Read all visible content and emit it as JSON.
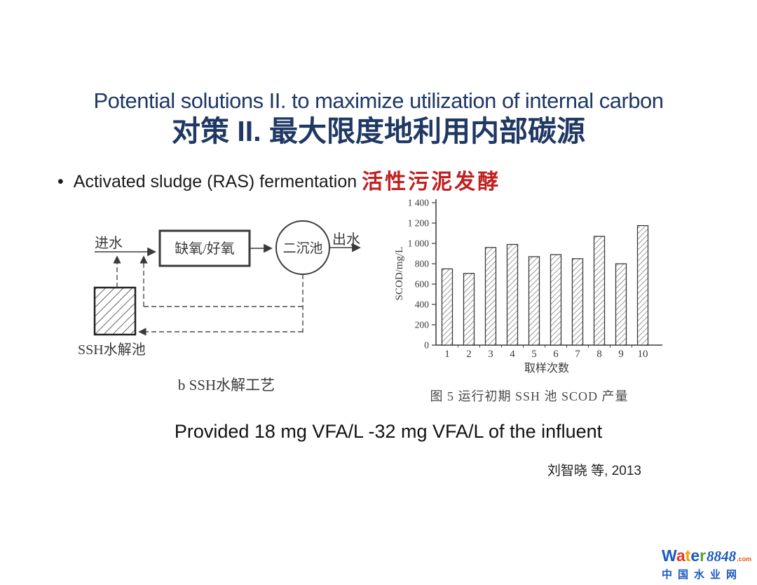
{
  "colors": {
    "title_navy": "#1f3864",
    "accent_red": "#c02020"
  },
  "slide": {
    "title_en": "Potential solutions II. to maximize utilization of internal carbon",
    "title_zh": "对策 II. 最大限度地利用内部碳源",
    "bullet_marker": "•",
    "bullet_en": "Activated sludge (RAS) fermentation",
    "bullet_zh": "活性污泥发酵",
    "provided_line": "Provided 18 mg VFA/L -32 mg VFA/L of the influent",
    "citation": "刘智晓 等, 2013"
  },
  "diagram": {
    "influent_label": "进水",
    "reactor_label": "缺氧/好氧",
    "clarifier_label": "二沉池",
    "effluent_label": "出水",
    "hydrolysis_tank_label": "SSH水解池",
    "caption": "b SSH水解工艺"
  },
  "chart": {
    "figure_caption": "图 5  运行初期 SSH 池 SCOD 产量"
  },
  "chart_data": {
    "type": "bar",
    "title": "运行初期 SSH 池 SCOD 产量",
    "categories": [
      "1",
      "2",
      "3",
      "4",
      "5",
      "6",
      "7",
      "8",
      "9",
      "10"
    ],
    "values": [
      750,
      705,
      960,
      990,
      870,
      890,
      850,
      1070,
      800,
      1175
    ],
    "xlabel": "取样次数",
    "ylabel": "SCOD/mg/L",
    "ylim": [
      0,
      1400
    ],
    "ytick_labels": [
      "0",
      "200",
      "400",
      "600",
      "800",
      "1 000",
      "1 200",
      "1 400"
    ],
    "grid": false,
    "legend": "none",
    "bar_style": "diagonal-hatch"
  },
  "logo": {
    "letters": [
      {
        "ch": "W",
        "color": "#1a5abe"
      },
      {
        "ch": "a",
        "color": "#e23a28"
      },
      {
        "ch": "t",
        "color": "#f0a400"
      },
      {
        "ch": "e",
        "color": "#1a5abe"
      },
      {
        "ch": "r",
        "color": "#56a41e"
      }
    ],
    "number": "8848",
    "number_color": "#1a5abe",
    "tld": ".com",
    "tld_color": "#e85a10",
    "subtitle": "中国水业网",
    "subtitle_color": "#1a5abe"
  }
}
